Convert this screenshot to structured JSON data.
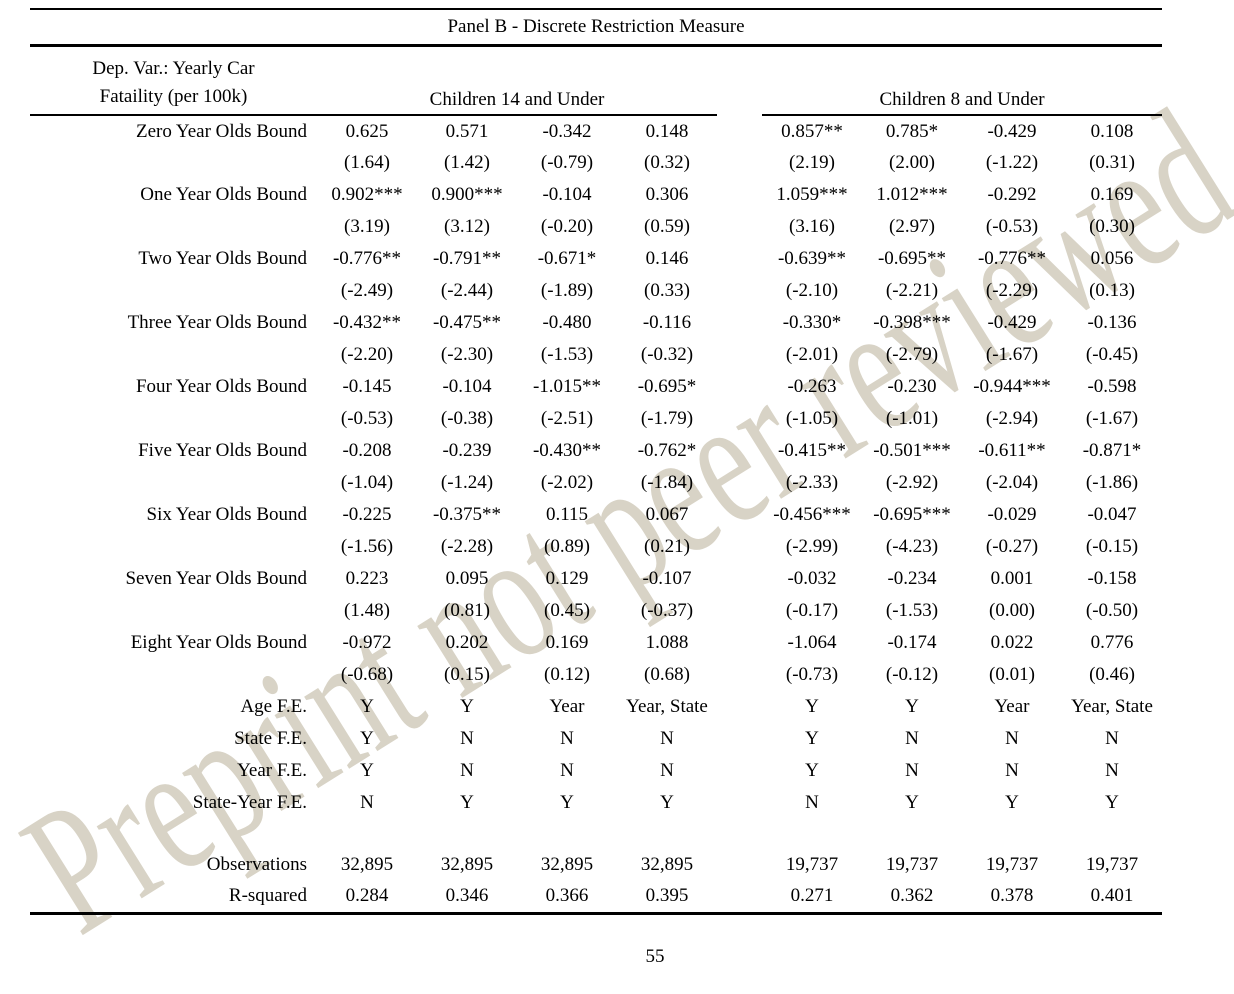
{
  "page": {
    "panel_title": "Panel B - Discrete Restriction Measure",
    "page_number": "55",
    "watermark": {
      "text": "Preprint not peer reviewed",
      "color": "#d8d3c6"
    }
  },
  "table": {
    "dep_var_header_line1": "Dep. Var.: Yearly Car",
    "dep_var_header_line2": "Fataility (per 100k)",
    "group_headers": [
      "Children 14 and Under",
      "Children 8 and Under"
    ],
    "rows": [
      {
        "type": "coef",
        "label": "Zero Year Olds Bound",
        "cells": [
          "0.625",
          "0.571",
          "-0.342",
          "0.148",
          "0.857**",
          "0.785*",
          "-0.429",
          "0.108"
        ]
      },
      {
        "type": "tstat",
        "label": "",
        "cells": [
          "(1.64)",
          "(1.42)",
          "(-0.79)",
          "(0.32)",
          "(2.19)",
          "(2.00)",
          "(-1.22)",
          "(0.31)"
        ]
      },
      {
        "type": "coef",
        "label": "One Year Olds Bound",
        "cells": [
          "0.902***",
          "0.900***",
          "-0.104",
          "0.306",
          "1.059***",
          "1.012***",
          "-0.292",
          "0.169"
        ]
      },
      {
        "type": "tstat",
        "label": "",
        "cells": [
          "(3.19)",
          "(3.12)",
          "(-0.20)",
          "(0.59)",
          "(3.16)",
          "(2.97)",
          "(-0.53)",
          "(0.30)"
        ]
      },
      {
        "type": "coef",
        "label": "Two Year Olds Bound",
        "cells": [
          "-0.776**",
          "-0.791**",
          "-0.671*",
          "0.146",
          "-0.639**",
          "-0.695**",
          "-0.776**",
          "0.056"
        ]
      },
      {
        "type": "tstat",
        "label": "",
        "cells": [
          "(-2.49)",
          "(-2.44)",
          "(-1.89)",
          "(0.33)",
          "(-2.10)",
          "(-2.21)",
          "(-2.29)",
          "(0.13)"
        ]
      },
      {
        "type": "coef",
        "label": "Three Year Olds Bound",
        "cells": [
          "-0.432**",
          "-0.475**",
          "-0.480",
          "-0.116",
          "-0.330*",
          "-0.398***",
          "-0.429",
          "-0.136"
        ]
      },
      {
        "type": "tstat",
        "label": "",
        "cells": [
          "(-2.20)",
          "(-2.30)",
          "(-1.53)",
          "(-0.32)",
          "(-2.01)",
          "(-2.79)",
          "(-1.67)",
          "(-0.45)"
        ]
      },
      {
        "type": "coef",
        "label": "Four Year Olds Bound",
        "cells": [
          "-0.145",
          "-0.104",
          "-1.015**",
          "-0.695*",
          "-0.263",
          "-0.230",
          "-0.944***",
          "-0.598"
        ]
      },
      {
        "type": "tstat",
        "label": "",
        "cells": [
          "(-0.53)",
          "(-0.38)",
          "(-2.51)",
          "(-1.79)",
          "(-1.05)",
          "(-1.01)",
          "(-2.94)",
          "(-1.67)"
        ]
      },
      {
        "type": "coef",
        "label": "Five Year Olds Bound",
        "cells": [
          "-0.208",
          "-0.239",
          "-0.430**",
          "-0.762*",
          "-0.415**",
          "-0.501***",
          "-0.611**",
          "-0.871*"
        ]
      },
      {
        "type": "tstat",
        "label": "",
        "cells": [
          "(-1.04)",
          "(-1.24)",
          "(-2.02)",
          "(-1.84)",
          "(-2.33)",
          "(-2.92)",
          "(-2.04)",
          "(-1.86)"
        ]
      },
      {
        "type": "coef",
        "label": "Six Year Olds Bound",
        "cells": [
          "-0.225",
          "-0.375**",
          "0.115",
          "0.067",
          "-0.456***",
          "-0.695***",
          "-0.029",
          "-0.047"
        ]
      },
      {
        "type": "tstat",
        "label": "",
        "cells": [
          "(-1.56)",
          "(-2.28)",
          "(0.89)",
          "(0.21)",
          "(-2.99)",
          "(-4.23)",
          "(-0.27)",
          "(-0.15)"
        ]
      },
      {
        "type": "coef",
        "label": "Seven Year Olds Bound",
        "cells": [
          "0.223",
          "0.095",
          "0.129",
          "-0.107",
          "-0.032",
          "-0.234",
          "0.001",
          "-0.158"
        ]
      },
      {
        "type": "tstat",
        "label": "",
        "cells": [
          "(1.48)",
          "(0.81)",
          "(0.45)",
          "(-0.37)",
          "(-0.17)",
          "(-1.53)",
          "(0.00)",
          "(-0.50)"
        ]
      },
      {
        "type": "coef",
        "label": "Eight Year Olds Bound",
        "cells": [
          "-0.972",
          "0.202",
          "0.169",
          "1.088",
          "-1.064",
          "-0.174",
          "0.022",
          "0.776"
        ]
      },
      {
        "type": "tstat",
        "label": "",
        "cells": [
          "(-0.68)",
          "(0.15)",
          "(0.12)",
          "(0.68)",
          "(-0.73)",
          "(-0.12)",
          "(0.01)",
          "(0.46)"
        ]
      },
      {
        "type": "fe",
        "label": "Age F.E.",
        "cells": [
          "Y",
          "Y",
          "Year",
          "Year, State",
          "Y",
          "Y",
          "Year",
          "Year, State"
        ]
      },
      {
        "type": "fe",
        "label": "State F.E.",
        "cells": [
          "Y",
          "N",
          "N",
          "N",
          "Y",
          "N",
          "N",
          "N"
        ]
      },
      {
        "type": "fe",
        "label": "Year F.E.",
        "cells": [
          "Y",
          "N",
          "N",
          "N",
          "Y",
          "N",
          "N",
          "N"
        ]
      },
      {
        "type": "fe",
        "label": "State-Year F.E.",
        "cells": [
          "N",
          "Y",
          "Y",
          "Y",
          "N",
          "Y",
          "Y",
          "Y"
        ]
      },
      {
        "type": "blank",
        "label": "",
        "cells": null
      },
      {
        "type": "stat",
        "label": "Observations",
        "cells": [
          "32,895",
          "32,895",
          "32,895",
          "32,895",
          "19,737",
          "19,737",
          "19,737",
          "19,737"
        ]
      },
      {
        "type": "stat",
        "label": "R-squared",
        "cells": [
          "0.284",
          "0.346",
          "0.366",
          "0.395",
          "0.271",
          "0.362",
          "0.378",
          "0.401"
        ]
      }
    ]
  }
}
